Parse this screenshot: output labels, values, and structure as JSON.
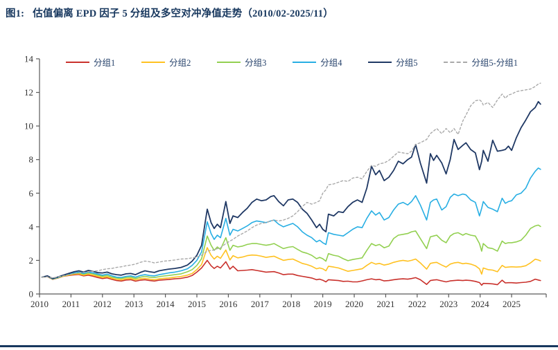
{
  "title": {
    "label": "图1:",
    "text": "估值偏离 EPD 因子 5 分组及多空对冲净值走势（2010/02-2025/11）"
  },
  "colors": {
    "title": "#17375E",
    "axis": "#595959",
    "footer_rule": "#17375E",
    "group1_red": "#C9302B",
    "group2_gold": "#FFC120",
    "group3_green": "#92D050",
    "group4_cyan": "#27AEE3",
    "group5_navy": "#1F3864",
    "longshort_gray": "#A9A9A9"
  },
  "chart_data": {
    "type": "line",
    "title": "估值偏离 EPD 因子 5 分组及多空对冲净值走势（2010/02-2025/11）",
    "xlabel": "",
    "ylabel": "",
    "xlim": [
      2010,
      2026.1
    ],
    "ylim": [
      0,
      14
    ],
    "grid": false,
    "legend_position": "top",
    "x_ticks": [
      "2010",
      "2011",
      "2012",
      "2013",
      "2014",
      "2015",
      "2016",
      "2017",
      "2018",
      "2019",
      "2020",
      "2021",
      "2022",
      "2023",
      "2024",
      "2025"
    ],
    "y_ticks": [
      "0",
      "2",
      "4",
      "6",
      "8",
      "10",
      "12",
      "14"
    ],
    "x": [
      2010.08,
      2010.25,
      2010.42,
      2010.6,
      2010.75,
      2010.92,
      2011.1,
      2011.25,
      2011.4,
      2011.55,
      2011.7,
      2011.85,
      2012.0,
      2012.15,
      2012.3,
      2012.45,
      2012.6,
      2012.75,
      2012.9,
      2013.05,
      2013.2,
      2013.35,
      2013.5,
      2013.65,
      2013.8,
      2013.95,
      2014.1,
      2014.3,
      2014.5,
      2014.7,
      2014.85,
      2015.0,
      2015.15,
      2015.33,
      2015.45,
      2015.55,
      2015.65,
      2015.75,
      2015.92,
      2016.05,
      2016.15,
      2016.3,
      2016.45,
      2016.6,
      2016.75,
      2016.9,
      2017.05,
      2017.2,
      2017.35,
      2017.45,
      2017.6,
      2017.75,
      2017.9,
      2018.05,
      2018.2,
      2018.35,
      2018.5,
      2018.65,
      2018.8,
      2018.9,
      2019.0,
      2019.1,
      2019.18,
      2019.35,
      2019.5,
      2019.65,
      2019.8,
      2019.95,
      2020.1,
      2020.25,
      2020.4,
      2020.55,
      2020.68,
      2020.8,
      2020.95,
      2021.1,
      2021.25,
      2021.4,
      2021.55,
      2021.7,
      2021.82,
      2021.95,
      2022.1,
      2022.3,
      2022.42,
      2022.52,
      2022.62,
      2022.78,
      2022.92,
      2023.05,
      2023.17,
      2023.3,
      2023.45,
      2023.55,
      2023.7,
      2023.85,
      2023.98,
      2024.05,
      2024.1,
      2024.25,
      2024.4,
      2024.55,
      2024.7,
      2024.8,
      2024.9,
      2025.0,
      2025.15,
      2025.3,
      2025.45,
      2025.6,
      2025.75,
      2025.85,
      2025.92
    ],
    "series": [
      {
        "name": "分组1",
        "color": "#C9302B",
        "style": "solid",
        "width": 1.6,
        "values": [
          1.0,
          1.03,
          0.87,
          0.96,
          1.05,
          1.1,
          1.14,
          1.16,
          1.08,
          1.12,
          1.06,
          0.98,
          0.92,
          0.96,
          0.87,
          0.8,
          0.77,
          0.83,
          0.85,
          0.76,
          0.82,
          0.85,
          0.8,
          0.77,
          0.82,
          0.84,
          0.86,
          0.9,
          0.93,
          1.0,
          1.1,
          1.3,
          1.55,
          2.0,
          1.68,
          1.52,
          1.65,
          1.55,
          1.92,
          1.48,
          1.65,
          1.38,
          1.4,
          1.42,
          1.45,
          1.4,
          1.35,
          1.3,
          1.32,
          1.33,
          1.25,
          1.15,
          1.18,
          1.18,
          1.1,
          1.05,
          1.0,
          0.95,
          0.85,
          0.88,
          0.82,
          0.72,
          0.85,
          0.82,
          0.8,
          0.75,
          0.76,
          0.72,
          0.72,
          0.78,
          0.85,
          0.9,
          0.85,
          0.87,
          0.78,
          0.8,
          0.85,
          0.88,
          0.9,
          0.88,
          0.92,
          0.97,
          0.85,
          0.57,
          0.8,
          0.83,
          0.85,
          0.78,
          0.72,
          0.78,
          0.8,
          0.82,
          0.8,
          0.82,
          0.8,
          0.75,
          0.68,
          0.52,
          0.63,
          0.62,
          0.6,
          0.55,
          0.82,
          0.66,
          0.67,
          0.67,
          0.65,
          0.68,
          0.7,
          0.75,
          0.88,
          0.83,
          0.8
        ]
      },
      {
        "name": "分组2",
        "color": "#FFC120",
        "style": "solid",
        "width": 1.6,
        "values": [
          1.0,
          1.04,
          0.88,
          0.97,
          1.06,
          1.12,
          1.18,
          1.2,
          1.12,
          1.18,
          1.12,
          1.05,
          0.98,
          1.02,
          0.93,
          0.87,
          0.84,
          0.9,
          0.92,
          0.84,
          0.9,
          0.93,
          0.88,
          0.85,
          0.9,
          0.93,
          0.95,
          1.0,
          1.04,
          1.12,
          1.22,
          1.45,
          1.75,
          2.76,
          2.3,
          2.08,
          2.25,
          2.12,
          2.62,
          2.02,
          2.28,
          2.15,
          2.2,
          2.28,
          2.32,
          2.3,
          2.25,
          2.18,
          2.22,
          2.25,
          2.12,
          2.0,
          2.05,
          2.08,
          1.95,
          1.82,
          1.75,
          1.65,
          1.5,
          1.55,
          1.5,
          1.38,
          1.65,
          1.6,
          1.55,
          1.45,
          1.35,
          1.4,
          1.45,
          1.5,
          1.7,
          1.88,
          1.78,
          1.82,
          1.72,
          1.78,
          1.88,
          1.95,
          2.0,
          1.95,
          2.0,
          2.08,
          1.85,
          1.48,
          1.82,
          1.86,
          1.88,
          1.72,
          1.6,
          1.78,
          1.85,
          1.88,
          1.8,
          1.83,
          1.78,
          1.68,
          1.5,
          1.18,
          1.55,
          1.45,
          1.42,
          1.32,
          1.7,
          1.58,
          1.6,
          1.62,
          1.6,
          1.62,
          1.68,
          1.85,
          2.07,
          2.02,
          1.97
        ]
      },
      {
        "name": "分组3",
        "color": "#92D050",
        "style": "solid",
        "width": 1.6,
        "values": [
          1.0,
          1.05,
          0.89,
          0.98,
          1.08,
          1.15,
          1.22,
          1.25,
          1.18,
          1.25,
          1.2,
          1.12,
          1.06,
          1.1,
          1.0,
          0.95,
          0.92,
          0.98,
          1.0,
          0.92,
          1.0,
          1.05,
          1.0,
          0.98,
          1.03,
          1.07,
          1.1,
          1.15,
          1.2,
          1.32,
          1.45,
          1.7,
          2.1,
          3.45,
          2.9,
          2.6,
          2.8,
          2.65,
          3.35,
          2.6,
          2.9,
          2.8,
          2.85,
          2.95,
          3.0,
          3.0,
          2.95,
          2.9,
          2.95,
          3.0,
          2.85,
          2.7,
          2.78,
          2.82,
          2.65,
          2.5,
          2.42,
          2.3,
          2.1,
          2.18,
          2.1,
          1.95,
          2.4,
          2.3,
          2.25,
          2.1,
          1.98,
          2.05,
          2.1,
          2.15,
          2.6,
          3.0,
          2.88,
          2.95,
          2.75,
          2.85,
          3.3,
          3.5,
          3.55,
          3.6,
          3.7,
          3.75,
          3.3,
          2.7,
          3.4,
          3.45,
          3.5,
          3.2,
          3.05,
          3.45,
          3.6,
          3.65,
          3.5,
          3.6,
          3.5,
          3.45,
          3.0,
          2.55,
          3.0,
          2.75,
          2.7,
          2.55,
          3.15,
          3.0,
          3.05,
          3.05,
          3.1,
          3.2,
          3.5,
          3.9,
          4.05,
          4.1,
          4.02
        ]
      },
      {
        "name": "分组4",
        "color": "#27AEE3",
        "style": "solid",
        "width": 1.6,
        "values": [
          1.0,
          1.06,
          0.9,
          1.0,
          1.1,
          1.18,
          1.26,
          1.3,
          1.22,
          1.3,
          1.25,
          1.18,
          1.12,
          1.18,
          1.08,
          1.0,
          0.98,
          1.05,
          1.08,
          1.0,
          1.1,
          1.15,
          1.1,
          1.08,
          1.15,
          1.2,
          1.25,
          1.3,
          1.38,
          1.5,
          1.7,
          2.0,
          2.5,
          4.3,
          3.6,
          3.25,
          3.5,
          3.35,
          4.5,
          3.5,
          3.85,
          3.75,
          3.9,
          4.05,
          4.25,
          4.35,
          4.3,
          4.25,
          4.35,
          4.4,
          4.15,
          4.0,
          4.1,
          4.2,
          4.0,
          3.7,
          3.5,
          3.35,
          3.1,
          3.2,
          3.05,
          2.95,
          3.65,
          3.55,
          3.5,
          3.45,
          3.65,
          3.85,
          4.0,
          3.95,
          4.5,
          4.95,
          4.7,
          4.85,
          4.4,
          4.55,
          5.0,
          5.35,
          5.45,
          5.3,
          5.5,
          5.85,
          5.3,
          4.4,
          5.45,
          5.6,
          5.65,
          5.0,
          5.2,
          5.75,
          5.95,
          5.85,
          5.95,
          5.9,
          5.6,
          5.45,
          4.65,
          5.1,
          5.5,
          5.15,
          5.05,
          4.9,
          5.7,
          5.4,
          5.5,
          5.55,
          5.9,
          6.0,
          6.3,
          6.9,
          7.3,
          7.5,
          7.42
        ]
      },
      {
        "name": "分组5",
        "color": "#1F3864",
        "style": "solid",
        "width": 1.8,
        "values": [
          1.0,
          1.08,
          0.92,
          1.02,
          1.12,
          1.22,
          1.32,
          1.38,
          1.3,
          1.4,
          1.35,
          1.27,
          1.25,
          1.3,
          1.2,
          1.15,
          1.12,
          1.2,
          1.22,
          1.15,
          1.28,
          1.38,
          1.32,
          1.28,
          1.38,
          1.43,
          1.48,
          1.52,
          1.58,
          1.72,
          1.95,
          2.3,
          2.9,
          5.05,
          4.25,
          3.9,
          4.15,
          3.95,
          5.5,
          4.2,
          4.65,
          4.55,
          4.85,
          5.1,
          5.45,
          5.65,
          5.55,
          5.6,
          5.8,
          5.85,
          5.5,
          5.25,
          5.6,
          5.65,
          5.45,
          5.05,
          4.8,
          4.4,
          3.95,
          4.15,
          3.85,
          3.7,
          4.75,
          4.65,
          4.9,
          4.85,
          5.2,
          5.45,
          5.6,
          5.45,
          6.3,
          7.6,
          7.1,
          7.35,
          6.75,
          6.95,
          7.35,
          7.9,
          7.75,
          8.0,
          8.15,
          8.9,
          7.8,
          6.6,
          8.35,
          7.95,
          8.25,
          7.8,
          7.15,
          8.0,
          9.2,
          8.6,
          8.85,
          9.0,
          8.6,
          8.4,
          7.4,
          7.9,
          8.55,
          7.9,
          9.15,
          8.5,
          8.55,
          8.6,
          8.8,
          8.55,
          9.3,
          9.9,
          10.35,
          10.85,
          11.1,
          11.45,
          11.3
        ]
      },
      {
        "name": "分组5-分组1",
        "color": "#A9A9A9",
        "style": "dashed",
        "width": 1.4,
        "values": [
          1.0,
          1.02,
          0.96,
          1.02,
          1.08,
          1.15,
          1.22,
          1.25,
          1.28,
          1.32,
          1.35,
          1.38,
          1.45,
          1.5,
          1.52,
          1.58,
          1.62,
          1.68,
          1.72,
          1.78,
          1.88,
          1.96,
          1.92,
          1.85,
          1.9,
          1.95,
          1.98,
          2.02,
          2.08,
          2.1,
          2.15,
          2.2,
          2.3,
          2.55,
          2.6,
          2.62,
          2.7,
          2.75,
          3.0,
          3.15,
          3.25,
          3.45,
          3.6,
          3.75,
          3.95,
          4.1,
          4.2,
          4.25,
          4.35,
          4.4,
          4.35,
          4.4,
          4.5,
          4.65,
          4.9,
          5.2,
          5.45,
          5.35,
          5.45,
          5.55,
          6.0,
          6.2,
          6.5,
          6.55,
          6.65,
          6.75,
          6.7,
          6.9,
          6.95,
          6.85,
          7.3,
          7.65,
          7.6,
          7.75,
          7.8,
          7.95,
          8.2,
          8.45,
          8.4,
          8.35,
          8.5,
          8.9,
          9.0,
          9.2,
          9.55,
          9.7,
          9.85,
          9.55,
          9.85,
          9.6,
          9.85,
          9.5,
          10.3,
          10.65,
          11.2,
          11.5,
          11.55,
          11.45,
          11.25,
          11.4,
          11.1,
          11.55,
          11.9,
          11.65,
          11.85,
          11.9,
          12.05,
          12.1,
          12.15,
          12.2,
          12.35,
          12.5,
          12.55
        ]
      }
    ]
  }
}
